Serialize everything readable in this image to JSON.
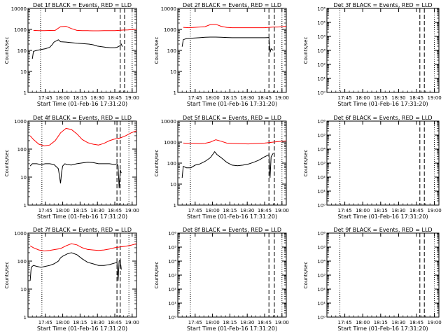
{
  "figure": {
    "xlabel": "Start Time (01-Feb-16 17:31:20)",
    "ylabel": "Counts/sec",
    "xtick_labels": [
      "17:45",
      "18:00",
      "18:15",
      "18:30",
      "18:45",
      "19:00"
    ],
    "colors": {
      "events": "#000000",
      "lld": "#ff0000",
      "axes": "#000000"
    }
  },
  "chart_data": [
    {
      "type": "line",
      "title": "Det 1f BLACK = Events, RED = LLD",
      "yscale": "log",
      "ylim": [
        1,
        10000
      ],
      "ytick_labels": [
        "1",
        "10",
        "100",
        "1000",
        "10000"
      ],
      "xlim": [
        0,
        100
      ],
      "series": [
        {
          "name": "Events",
          "x": [
            4,
            5,
            8,
            12,
            16,
            20,
            22,
            24,
            27,
            28,
            30,
            35,
            45,
            50,
            56,
            60,
            64,
            68,
            72,
            76,
            80,
            82,
            83,
            84,
            85,
            86,
            87
          ],
          "values": [
            40,
            90,
            100,
            110,
            120,
            140,
            180,
            250,
            300,
            320,
            260,
            250,
            220,
            210,
            200,
            185,
            160,
            150,
            140,
            135,
            135,
            140,
            150,
            160,
            170,
            200,
            150
          ]
        },
        {
          "name": "LLD",
          "x": [
            5,
            10,
            15,
            20,
            25,
            30,
            35,
            40,
            45,
            50,
            55,
            60,
            65,
            70,
            75,
            80,
            84,
            88,
            92,
            96,
            100
          ],
          "values": [
            900,
            880,
            880,
            890,
            900,
            1350,
            1400,
            1100,
            900,
            880,
            870,
            860,
            860,
            870,
            880,
            880,
            900,
            930,
            950,
            980,
            1000
          ]
        }
      ],
      "annotations": [
        {
          "x": 11.6,
          "style": "dotted"
        },
        {
          "x": 85.0,
          "style": "dashed"
        },
        {
          "x": 89.0,
          "style": "dashed"
        },
        {
          "x": 96.0,
          "style": "dotted"
        }
      ]
    },
    {
      "type": "line",
      "title": "Det 2f BLACK = Events, RED = LLD",
      "yscale": "log",
      "ylim": [
        1,
        10000
      ],
      "ytick_labels": [
        "1",
        "10",
        "100",
        "1000",
        "10000"
      ],
      "xlim": [
        0,
        100
      ],
      "series": [
        {
          "name": "Events",
          "x": [
            4,
            5,
            8,
            12,
            16,
            20,
            25,
            30,
            35,
            40,
            45,
            50,
            55,
            60,
            65,
            70,
            75,
            80,
            84,
            85,
            86,
            88
          ],
          "values": [
            150,
            320,
            370,
            380,
            390,
            400,
            420,
            430,
            430,
            420,
            410,
            400,
            400,
            400,
            400,
            400,
            400,
            400,
            410,
            80,
            120,
            100
          ]
        },
        {
          "name": "LLD",
          "x": [
            5,
            10,
            15,
            20,
            25,
            30,
            35,
            40,
            45,
            50,
            55,
            60,
            65,
            70,
            75,
            80,
            84,
            88,
            92,
            96,
            100
          ],
          "values": [
            1250,
            1200,
            1250,
            1300,
            1350,
            1700,
            1750,
            1400,
            1250,
            1200,
            1200,
            1200,
            1200,
            1200,
            1200,
            1200,
            1250,
            1300,
            1300,
            1350,
            1400
          ]
        }
      ],
      "annotations": [
        {
          "x": 11.6,
          "style": "dotted"
        },
        {
          "x": 84.0,
          "style": "dashed"
        },
        {
          "x": 89.0,
          "style": "dashed"
        },
        {
          "x": 96.0,
          "style": "dotted"
        }
      ]
    },
    {
      "type": "line",
      "title": "Det 3f BLACK = Events, RED = LLD",
      "yscale": "log",
      "ylim": [
        1,
        1000000
      ],
      "ytick_labels": [
        "10⁰",
        "10¹",
        "10²",
        "10³",
        "10⁴",
        "10⁵",
        "10⁶"
      ],
      "xlim": [
        0,
        100
      ],
      "series": [],
      "annotations": [
        {
          "x": 11.6,
          "style": "dotted"
        },
        {
          "x": 83.0,
          "style": "dashed"
        },
        {
          "x": 87.0,
          "style": "dashed"
        },
        {
          "x": 96.0,
          "style": "dotted"
        }
      ]
    },
    {
      "type": "line",
      "title": "Det 4f BLACK = Events, RED = LLD",
      "yscale": "log",
      "ylim": [
        1,
        1000
      ],
      "ytick_labels": [
        "1",
        "10",
        "100",
        "1000"
      ],
      "xlim": [
        0,
        100
      ],
      "series": [
        {
          "name": "Events",
          "x": [
            2,
            4,
            8,
            12,
            16,
            20,
            24,
            28,
            30,
            31,
            32,
            34,
            36,
            40,
            45,
            50,
            55,
            60,
            65,
            70,
            75,
            80,
            82,
            83,
            84,
            85,
            86
          ],
          "values": [
            25,
            30,
            30,
            28,
            30,
            30,
            28,
            20,
            6,
            15,
            25,
            30,
            28,
            27,
            30,
            32,
            34,
            33,
            30,
            30,
            30,
            28,
            30,
            25,
            4,
            18,
            14
          ]
        },
        {
          "name": "LLD",
          "x": [
            2,
            5,
            10,
            15,
            20,
            25,
            30,
            35,
            40,
            45,
            50,
            55,
            60,
            65,
            70,
            75,
            80,
            85,
            90,
            95,
            100
          ],
          "values": [
            300,
            220,
            150,
            130,
            140,
            200,
            380,
            550,
            500,
            350,
            220,
            170,
            150,
            140,
            160,
            200,
            230,
            250,
            300,
            380,
            450
          ]
        }
      ],
      "annotations": [
        {
          "x": 12.8,
          "style": "dotted"
        },
        {
          "x": 82.0,
          "style": "dashed"
        },
        {
          "x": 85.0,
          "style": "dashed"
        },
        {
          "x": 93.0,
          "style": "dotted"
        }
      ]
    },
    {
      "type": "line",
      "title": "Det 5f BLACK = Events, RED = LLD",
      "yscale": "log",
      "ylim": [
        1,
        10000
      ],
      "ytick_labels": [
        "1",
        "10",
        "100",
        "1000",
        "10000"
      ],
      "xlim": [
        0,
        100
      ],
      "series": [
        {
          "name": "Events",
          "x": [
            4,
            5,
            8,
            12,
            16,
            20,
            25,
            30,
            34,
            36,
            40,
            45,
            50,
            55,
            60,
            65,
            70,
            75,
            80,
            84,
            85,
            86,
            88
          ],
          "values": [
            20,
            70,
            60,
            60,
            80,
            90,
            120,
            180,
            350,
            260,
            180,
            110,
            80,
            75,
            80,
            90,
            110,
            140,
            200,
            250,
            20,
            200,
            300
          ]
        },
        {
          "name": "LLD",
          "x": [
            5,
            10,
            15,
            20,
            25,
            30,
            35,
            40,
            45,
            50,
            55,
            60,
            65,
            70,
            75,
            80,
            84,
            88,
            92,
            96,
            100
          ],
          "values": [
            900,
            880,
            870,
            850,
            880,
            1000,
            1300,
            1100,
            900,
            880,
            850,
            830,
            820,
            850,
            870,
            900,
            950,
            1000,
            1050,
            1100,
            1150
          ]
        }
      ],
      "annotations": [
        {
          "x": 11.6,
          "style": "dotted"
        },
        {
          "x": 84.0,
          "style": "dashed"
        },
        {
          "x": 89.0,
          "style": "dashed"
        },
        {
          "x": 96.0,
          "style": "dotted"
        }
      ]
    },
    {
      "type": "line",
      "title": "Det 6f BLACK = Events, RED = LLD",
      "yscale": "log",
      "ylim": [
        1,
        1000000
      ],
      "ytick_labels": [
        "10⁰",
        "10¹",
        "10²",
        "10³",
        "10⁴",
        "10⁵",
        "10⁶"
      ],
      "xlim": [
        0,
        100
      ],
      "series": [],
      "annotations": [
        {
          "x": 11.6,
          "style": "dotted"
        },
        {
          "x": 83.0,
          "style": "dashed"
        },
        {
          "x": 87.0,
          "style": "dashed"
        },
        {
          "x": 96.0,
          "style": "dotted"
        }
      ]
    },
    {
      "type": "line",
      "title": "Det 7f BLACK = Events, RED = LLD",
      "yscale": "log",
      "ylim": [
        1,
        1000
      ],
      "ytick_labels": [
        "1",
        "10",
        "100",
        "1000"
      ],
      "xlim": [
        0,
        100
      ],
      "series": [
        {
          "name": "Events",
          "x": [
            2,
            3,
            5,
            8,
            12,
            16,
            20,
            24,
            28,
            30,
            32,
            36,
            40,
            45,
            50,
            55,
            60,
            65,
            70,
            75,
            80,
            82,
            83,
            84,
            85,
            86
          ],
          "values": [
            20,
            60,
            70,
            65,
            60,
            65,
            70,
            80,
            100,
            130,
            150,
            180,
            200,
            170,
            120,
            90,
            80,
            70,
            70,
            75,
            85,
            90,
            20,
            100,
            110,
            50
          ]
        },
        {
          "name": "LLD",
          "x": [
            2,
            5,
            10,
            15,
            20,
            25,
            30,
            35,
            40,
            45,
            50,
            55,
            60,
            65,
            70,
            75,
            80,
            85,
            90,
            95,
            100
          ],
          "values": [
            350,
            300,
            250,
            230,
            240,
            260,
            280,
            350,
            420,
            380,
            300,
            260,
            250,
            240,
            250,
            270,
            300,
            320,
            340,
            370,
            420
          ]
        }
      ],
      "annotations": [
        {
          "x": 12.8,
          "style": "dotted"
        },
        {
          "x": 82.0,
          "style": "dashed"
        },
        {
          "x": 85.0,
          "style": "dashed"
        },
        {
          "x": 93.0,
          "style": "dotted"
        }
      ]
    },
    {
      "type": "line",
      "title": "Det 8f BLACK = Events, RED = LLD",
      "yscale": "log",
      "ylim": [
        1,
        1000000
      ],
      "ytick_labels": [
        "10⁰",
        "10¹",
        "10²",
        "10³",
        "10⁴",
        "10⁵",
        "10⁶"
      ],
      "xlim": [
        0,
        100
      ],
      "series": [],
      "annotations": [
        {
          "x": 11.6,
          "style": "dotted"
        },
        {
          "x": 84.0,
          "style": "dashed"
        },
        {
          "x": 89.0,
          "style": "dashed"
        },
        {
          "x": 96.0,
          "style": "dotted"
        }
      ]
    },
    {
      "type": "line",
      "title": "Det 9f BLACK = Events, RED = LLD",
      "yscale": "log",
      "ylim": [
        1,
        1000000
      ],
      "ytick_labels": [
        "10⁰",
        "10¹",
        "10²",
        "10³",
        "10⁴",
        "10⁵",
        "10⁶"
      ],
      "xlim": [
        0,
        100
      ],
      "series": [],
      "annotations": [
        {
          "x": 11.6,
          "style": "dotted"
        },
        {
          "x": 83.0,
          "style": "dashed"
        },
        {
          "x": 87.0,
          "style": "dashed"
        },
        {
          "x": 96.0,
          "style": "dotted"
        }
      ]
    }
  ]
}
